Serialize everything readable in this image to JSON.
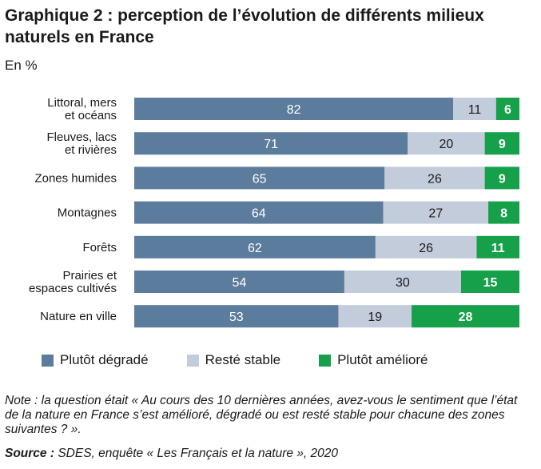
{
  "header": {
    "title": "Graphique 2 : perception de l’évolution de différents milieux naturels en France",
    "unit": "En %"
  },
  "colors": {
    "degrade": "#5b7c9c",
    "stable": "#c3ccdb",
    "ameliore": "#17a04a"
  },
  "chart_data": {
    "type": "bar",
    "orientation": "horizontal",
    "stacked": true,
    "categories": [
      [
        "Littoral, mers",
        "et océans"
      ],
      [
        "Fleuves, lacs",
        "et rivières"
      ],
      [
        "Zones humides"
      ],
      [
        "Montagnes"
      ],
      [
        "Forêts"
      ],
      [
        "Prairies et",
        "espaces cultivés"
      ],
      [
        "Nature en ville"
      ]
    ],
    "series": [
      {
        "name": "Plutôt dégradé",
        "values": [
          82,
          71,
          65,
          64,
          62,
          54,
          53
        ]
      },
      {
        "name": "Resté stable",
        "values": [
          11,
          20,
          26,
          27,
          26,
          30,
          19
        ]
      },
      {
        "name": "Plutôt amélioré",
        "values": [
          6,
          9,
          9,
          8,
          11,
          15,
          28
        ]
      }
    ],
    "legend_position": "bottom",
    "grid": false
  },
  "legend": {
    "items": [
      "Plutôt dégradé",
      "Resté stable",
      "Plutôt amélioré"
    ]
  },
  "footer": {
    "note": "Note : la question était « Au cours des 10 dernières années, avez-vous le sentiment que l’état de la nature en France s’est amélioré, dégradé ou est resté stable pour chacune des zones suivantes ? ».",
    "source_label": "Source :",
    "source_text": " SDES, enquête « Les Français et la nature », 2020"
  }
}
